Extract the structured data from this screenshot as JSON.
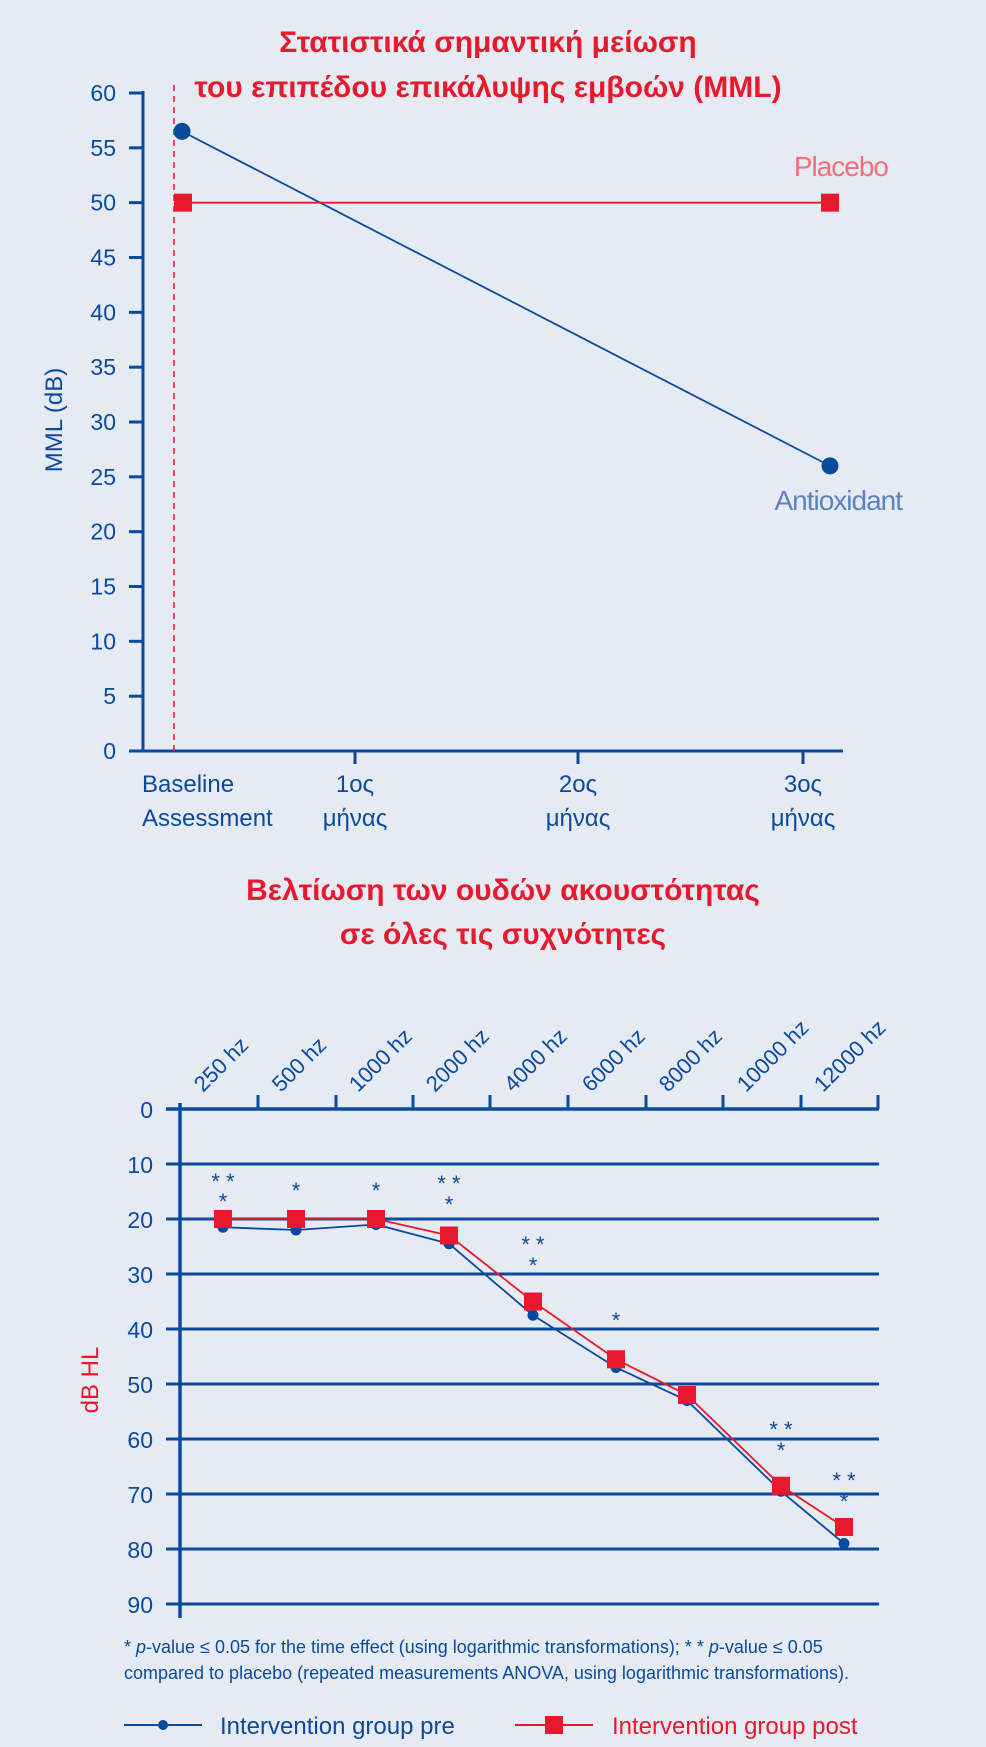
{
  "colors": {
    "navy": "#0a4a9c",
    "red": "#e8192c",
    "background": "#e6eaf3",
    "placebo_label": "#f0707c",
    "antiox_label": "#5b82c0"
  },
  "chart_data": [
    {
      "type": "line",
      "title_lines": [
        "Στατιστικά σημαντική μείωση",
        "του επιπέδου επικάλυψης εμβοών (MML)"
      ],
      "ylabel": "MML (dB)",
      "ylim": [
        0,
        60
      ],
      "yticks": [
        "0",
        "5",
        "10",
        "15",
        "20",
        "25",
        "30",
        "35",
        "40",
        "45",
        "50",
        "55",
        "60"
      ],
      "categories": [
        {
          "line1": "Baseline",
          "line2": "Assessment"
        },
        {
          "line1": "1ος",
          "line2": "μήνας"
        },
        {
          "line1": "2ος",
          "line2": "μήνας"
        },
        {
          "line1": "3ος",
          "line2": "μήνας"
        }
      ],
      "series": [
        {
          "name": "Antioxidant",
          "x": [
            "Baseline",
            "3ος μήνας"
          ],
          "values": [
            56.5,
            26
          ],
          "color": "#0a4a9c",
          "marker": "circle"
        },
        {
          "name": "Placebo",
          "x": [
            "Baseline",
            "3ος μήνας"
          ],
          "values": [
            50,
            50
          ],
          "color": "#e8192c",
          "marker": "square"
        }
      ],
      "baseline_marker": "dashed-vertical-line"
    },
    {
      "type": "line",
      "title_lines": [
        "Βελτίωση των ουδών ακουστότητας",
        "σε όλες τις συχνότητες"
      ],
      "ylabel": "dB HL",
      "ylim": [
        0,
        90
      ],
      "y_inverted": true,
      "yticks": [
        "0",
        "10",
        "20",
        "30",
        "40",
        "50",
        "60",
        "70",
        "80",
        "90"
      ],
      "categories": [
        "250 hz",
        "500 hz",
        "1000 hz",
        "2000 hz",
        "4000 hz",
        "6000 hz",
        "8000 hz",
        "10000 hz",
        "12000 hz"
      ],
      "series": [
        {
          "name": "Intervention group pre",
          "values": [
            21.5,
            22,
            21,
            24.5,
            37.5,
            47,
            53,
            69.5,
            79
          ],
          "color": "#0a4a9c",
          "marker": "circle"
        },
        {
          "name": "Intervention group post",
          "values": [
            20,
            20,
            20,
            23,
            35,
            45.5,
            52,
            68.5,
            76
          ],
          "color": "#e8192c",
          "marker": "square"
        }
      ],
      "significance": [
        {
          "category": "250 hz",
          "top": "* *",
          "bottom": "*"
        },
        {
          "category": "500 hz",
          "top": "",
          "bottom": "*"
        },
        {
          "category": "1000 hz",
          "top": "",
          "bottom": "*"
        },
        {
          "category": "2000 hz",
          "top": "* *",
          "bottom": "*"
        },
        {
          "category": "4000 hz",
          "top": "* *",
          "bottom": "*"
        },
        {
          "category": "6000 hz",
          "top": "",
          "bottom": "*"
        },
        {
          "category": "10000 hz",
          "top": "* *",
          "bottom": "*"
        },
        {
          "category": "12000 hz",
          "top": "* *",
          "bottom": "*"
        }
      ],
      "footnote_lines": [
        "* p-value ≤ 0.05 for the time effect (using logarithmic transformations); * * p-value ≤ 0.05",
        "compared to placebo (repeated measurements ANOVA, using logarithmic transformations)."
      ],
      "legend": [
        {
          "label": "Intervention group pre",
          "marker": "circle",
          "color": "#0a4a9c"
        },
        {
          "label": "Intervention group post",
          "marker": "square",
          "color": "#e8192c"
        }
      ]
    }
  ]
}
